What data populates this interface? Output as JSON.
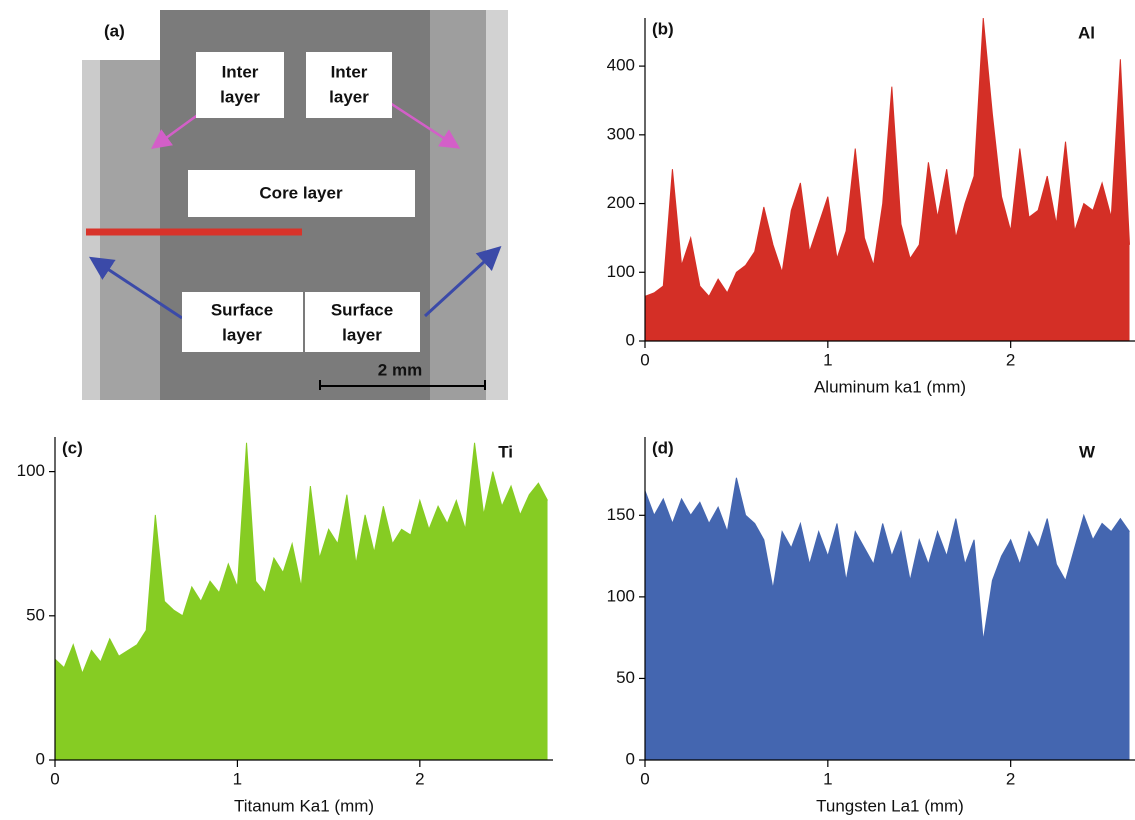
{
  "image_panel": {
    "panel_label": "(a)",
    "labels": [
      [
        "Inter",
        "layer"
      ],
      [
        "Inter",
        "layer"
      ],
      [
        "Core layer"
      ],
      [
        "Surface",
        "layer"
      ],
      [
        "Surface",
        "layer"
      ]
    ],
    "scale_bar": "2 mm"
  },
  "chart_data": [
    {
      "type": "area",
      "annotations": [
        "(b)",
        "Al"
      ],
      "x_label": "Aluminum ka1 (mm)",
      "color": "#d42f26",
      "x": [
        0,
        0.05,
        0.1,
        0.15,
        0.2,
        0.25,
        0.3,
        0.35,
        0.4,
        0.45,
        0.5,
        0.55,
        0.6,
        0.65,
        0.7,
        0.75,
        0.8,
        0.85,
        0.9,
        0.95,
        1.0,
        1.05,
        1.1,
        1.15,
        1.2,
        1.25,
        1.3,
        1.35,
        1.4,
        1.45,
        1.5,
        1.55,
        1.6,
        1.65,
        1.7,
        1.75,
        1.8,
        1.85,
        1.9,
        1.95,
        2.0,
        2.05,
        2.1,
        2.15,
        2.2,
        2.25,
        2.3,
        2.35,
        2.4,
        2.45,
        2.5,
        2.55,
        2.6,
        2.65
      ],
      "values": [
        65,
        70,
        80,
        250,
        110,
        150,
        80,
        65,
        90,
        70,
        100,
        110,
        130,
        195,
        140,
        100,
        190,
        230,
        130,
        170,
        210,
        120,
        160,
        280,
        150,
        110,
        200,
        370,
        170,
        120,
        140,
        260,
        180,
        250,
        150,
        200,
        240,
        470,
        330,
        210,
        160,
        280,
        180,
        190,
        240,
        170,
        290,
        160,
        200,
        190,
        230,
        180,
        410,
        140
      ],
      "xlim": [
        0,
        2.68
      ],
      "ylim": [
        0,
        470
      ],
      "xticks": [
        0,
        1,
        2
      ],
      "yticks": [
        0,
        100,
        200,
        300,
        400
      ]
    },
    {
      "type": "area",
      "annotations": [
        "(c)",
        "Ti"
      ],
      "x_label": "Titanum Ka1 (mm)",
      "color": "#86cc23",
      "x": [
        0,
        0.05,
        0.1,
        0.15,
        0.2,
        0.25,
        0.3,
        0.35,
        0.4,
        0.45,
        0.5,
        0.55,
        0.6,
        0.65,
        0.7,
        0.75,
        0.8,
        0.85,
        0.9,
        0.95,
        1.0,
        1.05,
        1.1,
        1.15,
        1.2,
        1.25,
        1.3,
        1.35,
        1.4,
        1.45,
        1.5,
        1.55,
        1.6,
        1.65,
        1.7,
        1.75,
        1.8,
        1.85,
        1.9,
        1.95,
        2.0,
        2.05,
        2.1,
        2.15,
        2.2,
        2.25,
        2.3,
        2.35,
        2.4,
        2.45,
        2.5,
        2.55,
        2.6,
        2.65,
        2.7
      ],
      "values": [
        35,
        32,
        40,
        30,
        38,
        34,
        42,
        36,
        38,
        40,
        45,
        85,
        55,
        52,
        50,
        60,
        55,
        62,
        58,
        68,
        60,
        110,
        62,
        58,
        70,
        65,
        75,
        60,
        95,
        70,
        80,
        75,
        92,
        68,
        85,
        72,
        88,
        75,
        80,
        78,
        90,
        80,
        88,
        82,
        90,
        80,
        110,
        85,
        100,
        88,
        95,
        85,
        92,
        96,
        90
      ],
      "xlim": [
        0,
        2.73
      ],
      "ylim": [
        0,
        112
      ],
      "xticks": [
        0,
        1,
        2
      ],
      "yticks": [
        0,
        50,
        100
      ]
    },
    {
      "type": "area",
      "annotations": [
        "(d)",
        "W"
      ],
      "x_label": "Tungsten La1 (mm)",
      "color": "#4466b0",
      "x": [
        0,
        0.05,
        0.1,
        0.15,
        0.2,
        0.25,
        0.3,
        0.35,
        0.4,
        0.45,
        0.5,
        0.55,
        0.6,
        0.65,
        0.7,
        0.75,
        0.8,
        0.85,
        0.9,
        0.95,
        1.0,
        1.05,
        1.1,
        1.15,
        1.2,
        1.25,
        1.3,
        1.35,
        1.4,
        1.45,
        1.5,
        1.55,
        1.6,
        1.65,
        1.7,
        1.75,
        1.8,
        1.85,
        1.9,
        1.95,
        2.0,
        2.05,
        2.1,
        2.15,
        2.2,
        2.25,
        2.3,
        2.35,
        2.4,
        2.45,
        2.5,
        2.55,
        2.6,
        2.65
      ],
      "values": [
        165,
        150,
        160,
        145,
        160,
        150,
        158,
        145,
        155,
        140,
        173,
        150,
        145,
        135,
        105,
        140,
        130,
        145,
        120,
        140,
        125,
        145,
        110,
        140,
        130,
        120,
        145,
        125,
        140,
        110,
        135,
        120,
        140,
        125,
        148,
        120,
        135,
        73,
        110,
        125,
        135,
        120,
        140,
        130,
        148,
        120,
        110,
        130,
        150,
        135,
        145,
        140,
        148,
        140
      ],
      "xlim": [
        0,
        2.68
      ],
      "ylim": [
        0,
        198
      ],
      "xticks": [
        0,
        1,
        2
      ],
      "yticks": [
        0,
        50,
        100,
        150
      ]
    }
  ]
}
